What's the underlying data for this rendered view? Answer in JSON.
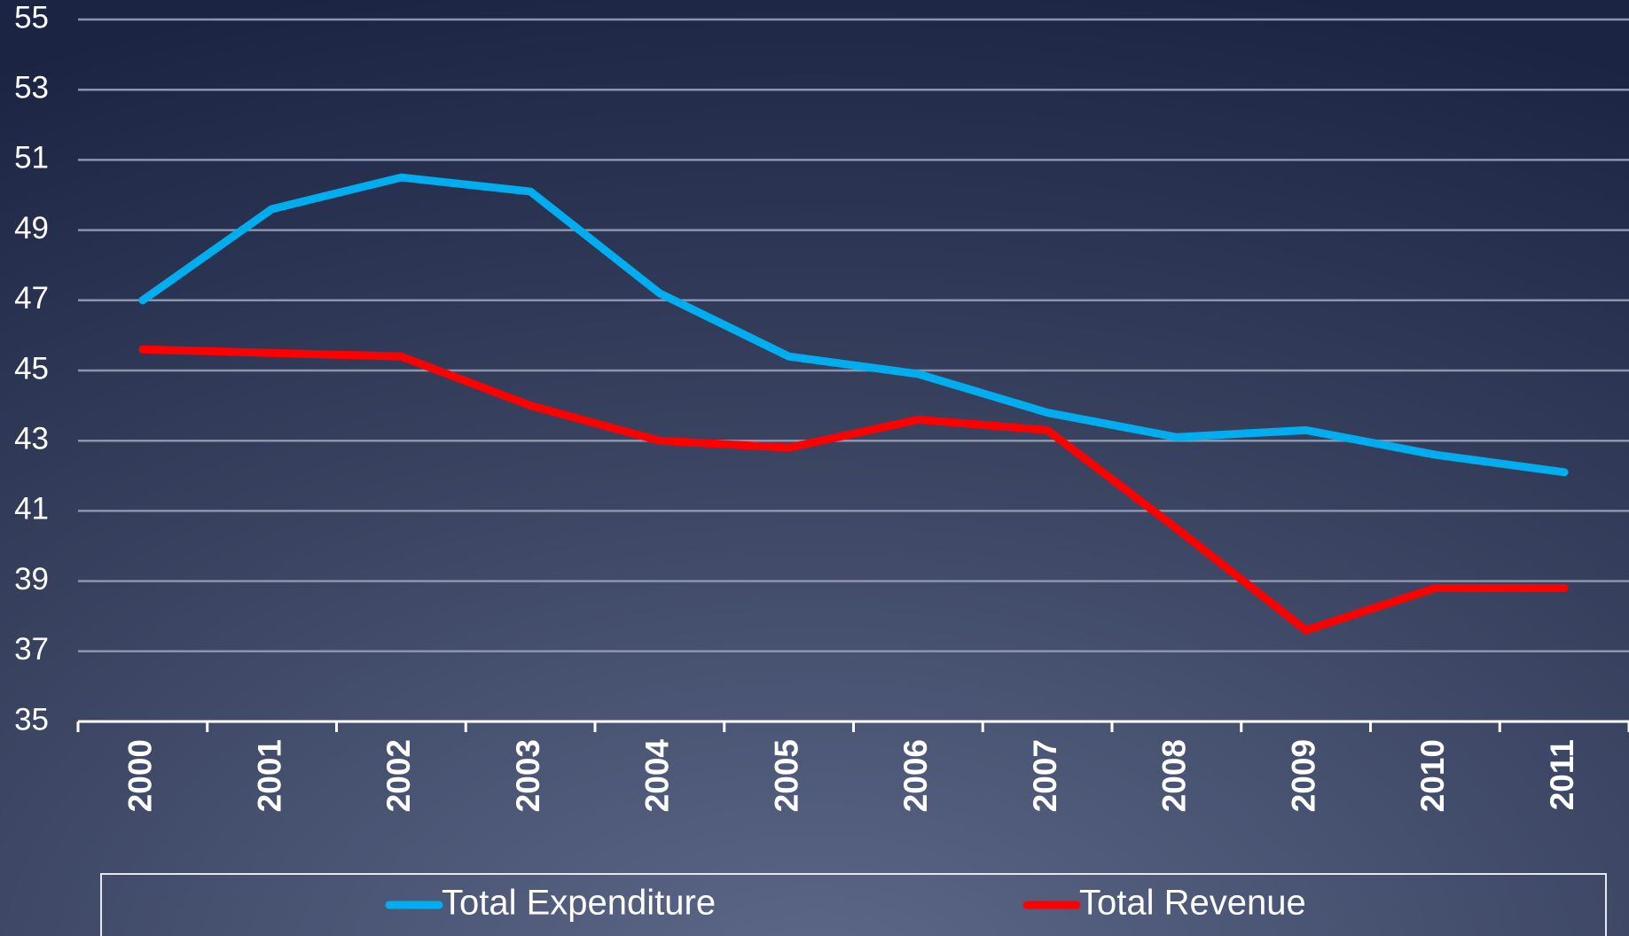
{
  "chart_data": {
    "type": "line",
    "categories": [
      "2000",
      "2001",
      "2002",
      "2003",
      "2004",
      "2005",
      "2006",
      "2007",
      "2008",
      "2009",
      "2010",
      "2011"
    ],
    "series": [
      {
        "name": "Total Expenditure",
        "color": "#00aeef",
        "values": [
          47.0,
          49.6,
          50.5,
          50.1,
          47.2,
          45.4,
          44.9,
          43.8,
          43.1,
          43.3,
          42.6,
          42.1
        ]
      },
      {
        "name": "Total Revenue",
        "color": "#ff0000",
        "values": [
          45.6,
          45.5,
          45.4,
          44.0,
          43.0,
          42.8,
          43.6,
          43.3,
          40.5,
          37.6,
          38.8,
          38.8
        ]
      }
    ],
    "ylim": [
      35,
      55
    ],
    "yticks": [
      35,
      37,
      39,
      41,
      43,
      45,
      47,
      49,
      51,
      53,
      55
    ],
    "grid": true,
    "legend": "bottom"
  }
}
